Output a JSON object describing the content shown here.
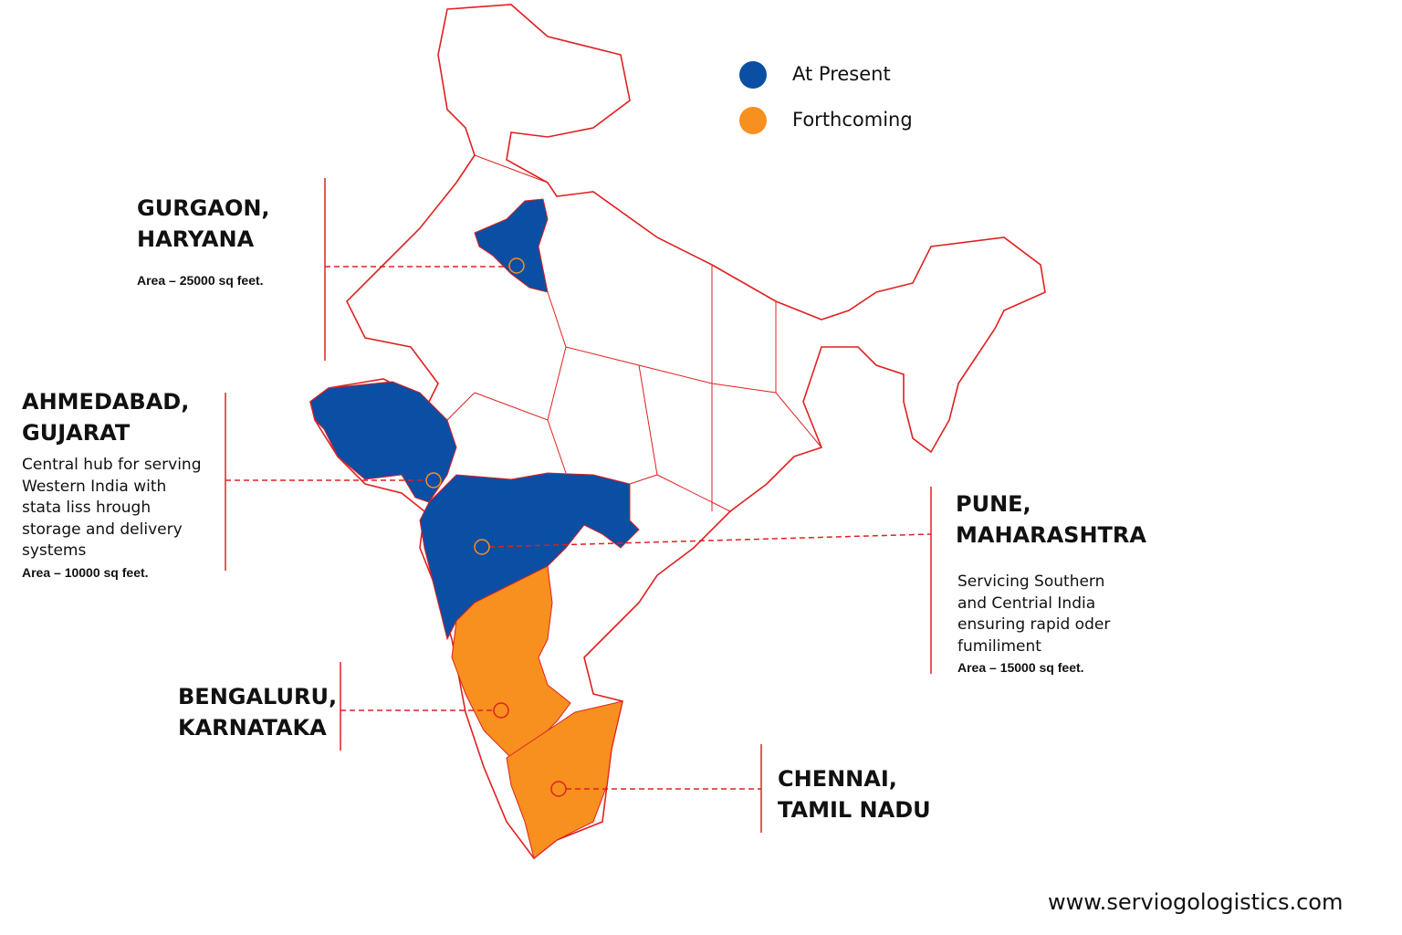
{
  "legend": [
    {
      "label": "At Present",
      "color": "#0a4fa3"
    },
    {
      "label": "Forthcoming",
      "color": "#f7901e"
    }
  ],
  "locations": [
    {
      "title": [
        "GURGAON,",
        "HARYANA"
      ],
      "area": "Area – 25000 sq feet."
    },
    {
      "title": [
        "AHMEDABAD,",
        "GUJARAT"
      ],
      "description": [
        "Central hub for serving",
        "Western India with",
        "stata liss hrough",
        "storage and delivery",
        "systems"
      ],
      "area": "Area – 10000 sq feet."
    },
    {
      "title": [
        "PUNE,",
        "MAHARASHTRA"
      ],
      "description": [
        "Servicing Southern",
        "and Centrial India",
        "ensuring rapid oder",
        "fumiliment"
      ],
      "area": "Area – 15000 sq feet."
    },
    {
      "title": [
        "BENGALURU,",
        "KARNATAKA"
      ]
    },
    {
      "title": [
        "CHENNAI,",
        "TAMIL NADU"
      ]
    }
  ],
  "website": "www.serviogologistics.com"
}
